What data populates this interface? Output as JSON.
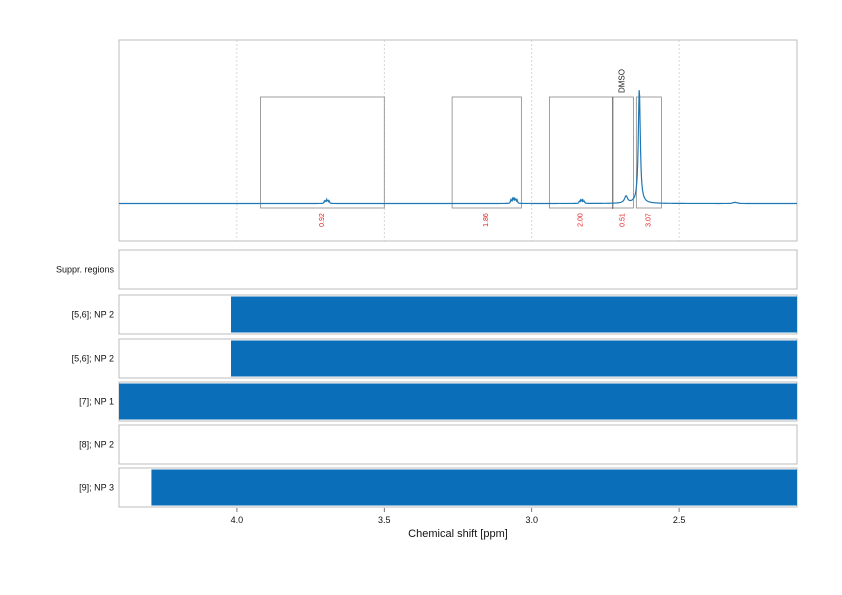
{
  "chart_data": {
    "type": "line",
    "title": "",
    "xlabel": "Chemical shift [ppm]",
    "ylabel": "",
    "x_reversed": true,
    "xlim": [
      4.4,
      2.1
    ],
    "x_ticks": [
      4.0,
      3.5,
      3.0,
      2.5
    ],
    "x_tick_labels": [
      "4.0",
      "3.5",
      "3.0",
      "2.5"
    ],
    "grid": "vertical dotted",
    "colors": {
      "spectrum": "#1f77b4",
      "band": "#0a6eb8",
      "integral": "#e41a1c",
      "box": "#888888"
    },
    "spectrum": {
      "baseline": 0.0,
      "peaks": [
        {
          "ppm": 3.695,
          "height": 0.03,
          "width": 0.025,
          "multiplet": 5
        },
        {
          "ppm": 3.06,
          "height": 0.045,
          "width": 0.03,
          "multiplet": 6
        },
        {
          "ppm": 2.83,
          "height": 0.03,
          "width": 0.025,
          "multiplet": 5
        },
        {
          "ppm": 2.68,
          "height": 0.06,
          "width": 0.006,
          "multiplet": 1
        },
        {
          "ppm": 2.635,
          "height": 1.0,
          "width": 0.004,
          "multiplet": 1
        },
        {
          "ppm": 2.31,
          "height": 0.01,
          "width": 0.03,
          "multiplet": 3
        }
      ]
    },
    "integration_regions": [
      {
        "from": 3.92,
        "to": 3.5,
        "label": "0.92"
      },
      {
        "from": 3.27,
        "to": 3.035,
        "label": "1.86"
      },
      {
        "from": 2.94,
        "to": 2.725,
        "label": "2.00"
      },
      {
        "from": 2.725,
        "to": 2.655,
        "label": "0.51"
      },
      {
        "from": 2.645,
        "to": 2.56,
        "label": "3.07"
      }
    ],
    "annotations": [
      {
        "ppm": 2.725,
        "text": "DMSO"
      }
    ],
    "region_rows": [
      {
        "label": "Suppr. regions",
        "bands": []
      },
      {
        "label": "[5,6]; NP 2",
        "bands": [
          [
            4.02,
            2.1
          ]
        ]
      },
      {
        "label": "[5,6]; NP 2",
        "bands": [
          [
            4.02,
            2.1
          ]
        ]
      },
      {
        "label": "[7]; NP 1",
        "bands": [
          [
            4.4,
            2.1
          ]
        ]
      },
      {
        "label": "[8]; NP 2",
        "bands": []
      },
      {
        "label": "[9]; NP 3",
        "bands": [
          [
            4.29,
            2.1
          ]
        ]
      }
    ]
  }
}
